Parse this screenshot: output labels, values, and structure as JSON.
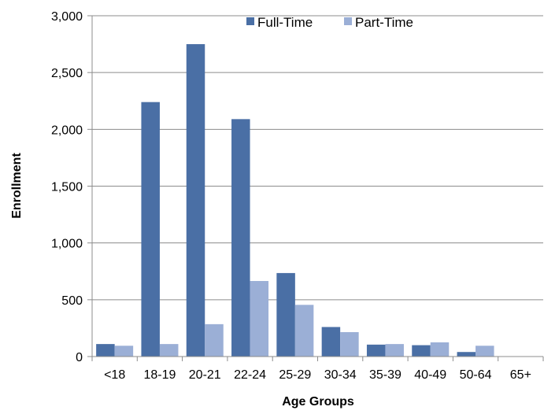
{
  "chart_data": {
    "type": "bar",
    "title": "",
    "xlabel": "Age Groups",
    "ylabel": "Enrollment",
    "categories": [
      "<18",
      "18-19",
      "20-21",
      "22-24",
      "25-29",
      "30-34",
      "35-39",
      "40-49",
      "50-64",
      "65+"
    ],
    "series": [
      {
        "name": "Full-Time",
        "color": "#4a6fa5",
        "values": [
          110,
          2240,
          2750,
          2090,
          735,
          260,
          105,
          100,
          40,
          2
        ]
      },
      {
        "name": "Part-Time",
        "color": "#9bafd6",
        "values": [
          95,
          110,
          285,
          665,
          455,
          215,
          110,
          125,
          95,
          2
        ]
      }
    ],
    "ylim": [
      0,
      3000
    ],
    "yticks": [
      0,
      500,
      1000,
      1500,
      2000,
      2500,
      3000
    ],
    "ytick_labels": [
      "0",
      "500",
      "1,000",
      "1,500",
      "2,000",
      "2,500",
      "3,000"
    ],
    "grid": true,
    "legend_position": "top-center"
  }
}
